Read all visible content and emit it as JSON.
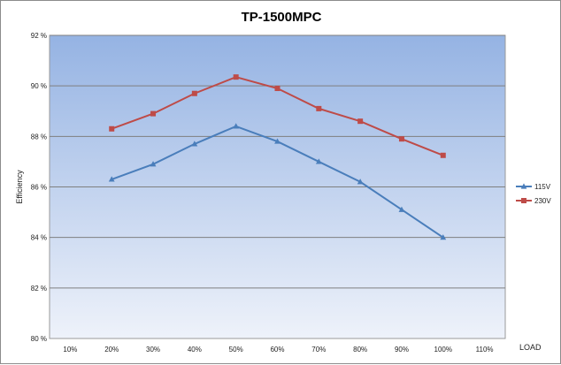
{
  "chart_data": {
    "type": "line",
    "title": "TP-1500MPC",
    "xlabel": "LOAD",
    "ylabel": "Efficiency",
    "categories": [
      "10%",
      "20%",
      "30%",
      "40%",
      "50%",
      "60%",
      "70%",
      "80%",
      "90%",
      "100%",
      "110%"
    ],
    "ylim": [
      80,
      92
    ],
    "yticks": [
      80,
      82,
      84,
      86,
      88,
      90,
      92
    ],
    "ytick_labels": [
      "80 %",
      "82 %",
      "84 %",
      "86 %",
      "88 %",
      "90 %",
      "92 %"
    ],
    "grid": true,
    "legend_position": "right",
    "series": [
      {
        "name": "115V",
        "color": "#4a7ebb",
        "marker": "triangle",
        "values": [
          null,
          86.3,
          86.9,
          87.7,
          88.4,
          87.8,
          87.0,
          86.2,
          85.1,
          84.0,
          null
        ]
      },
      {
        "name": "230V",
        "color": "#be4b48",
        "marker": "square",
        "values": [
          null,
          88.3,
          88.9,
          89.7,
          90.35,
          89.9,
          89.1,
          88.6,
          87.9,
          87.25,
          null
        ]
      }
    ],
    "plot_background": {
      "top": "#95b3e3",
      "bottom": "#eef2fa"
    }
  }
}
